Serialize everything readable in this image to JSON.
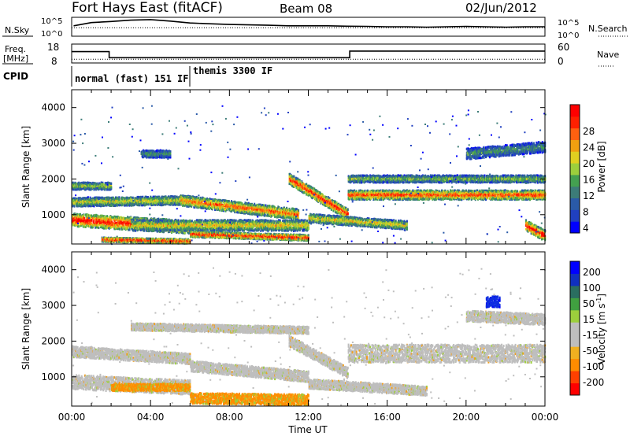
{
  "header": {
    "title": "Fort Hays East (fitACF)",
    "beam": "Beam 08",
    "date": "02/Jun/2012"
  },
  "colors": {
    "axis": "#000000",
    "scatter_gray": "#bebebe"
  },
  "chart_data": [
    {
      "type": "line",
      "name": "noise-panel",
      "left_label": "N.Sky",
      "right_label": "N.Search",
      "left_ticks": [
        "10^5",
        "10^0"
      ],
      "right_ticks": [
        "10^5",
        "10^0"
      ],
      "xlim_hours": [
        0,
        24
      ],
      "series": [
        {
          "name": "N.Sky",
          "style": "solid-dots",
          "x": [
            0.1,
            1,
            2,
            3,
            4,
            5,
            6,
            7,
            8,
            9,
            10,
            11,
            12,
            13,
            14,
            15,
            16,
            17,
            18,
            19,
            20,
            21,
            22,
            23,
            24
          ],
          "y": [
            0.55,
            0.72,
            0.78,
            0.85,
            0.88,
            0.8,
            0.7,
            0.66,
            0.62,
            0.6,
            0.58,
            0.55,
            0.55,
            0.55,
            0.53,
            0.52,
            0.5,
            0.5,
            0.48,
            0.5,
            0.52,
            0.5,
            0.48,
            0.5,
            0.5
          ]
        },
        {
          "name": "N.Search",
          "style": "dotted",
          "x": [
            0,
            24
          ],
          "y": [
            0.45,
            0.45
          ]
        }
      ]
    },
    {
      "type": "line",
      "name": "frequency-panel",
      "left_label": "Freq.",
      "left_unit": "[MHz]",
      "right_label": "Nave",
      "left_ticks": [
        "18",
        "8"
      ],
      "right_ticks": [
        "60",
        "0"
      ],
      "xlim_hours": [
        0,
        24
      ],
      "series": [
        {
          "name": "Freq",
          "style": "solid",
          "x": [
            0,
            1.9,
            1.9,
            14.1,
            14.1,
            24
          ],
          "y": [
            0.6,
            0.6,
            0.28,
            0.28,
            0.63,
            0.63
          ]
        },
        {
          "name": "Nave",
          "style": "dotted",
          "x": [
            0,
            24
          ],
          "y": [
            0.2,
            0.2
          ]
        }
      ]
    },
    {
      "type": "table",
      "name": "cpid-panel",
      "label": "CPID",
      "segments": [
        {
          "start_hour": 0,
          "end_hour": 6,
          "text": "normal (fast) 151 IF"
        },
        {
          "start_hour": 6,
          "end_hour": 24,
          "text": "themis 3300 IF"
        }
      ]
    },
    {
      "type": "heatmap",
      "name": "power-panel",
      "ylabel": "Slant Range [km]",
      "ylim": [
        180,
        4500
      ],
      "y_ticks": [
        1000,
        2000,
        3000,
        4000
      ],
      "xlim_hours": [
        0,
        24
      ],
      "colorbar": {
        "label": "Power [dB]",
        "ticks": [
          "28",
          "24",
          "20",
          "16",
          "12",
          "8",
          "4"
        ],
        "colors": [
          "#0000ff",
          "#2040c0",
          "#2a5aa8",
          "#3c7c78",
          "#44a050",
          "#9ccf3c",
          "#e0d020",
          "#f0a010",
          "#ff6010",
          "#ff2000",
          "#ff0000"
        ]
      },
      "bands": [
        {
          "x": [
            0,
            6
          ],
          "y_center": [
            850,
            650
          ],
          "half_width": 180,
          "intensity": 0.9
        },
        {
          "x": [
            0,
            6
          ],
          "y_center": [
            1350,
            1400
          ],
          "half_width": 120,
          "intensity": 0.55
        },
        {
          "x": [
            0,
            2
          ],
          "y_center": [
            1800,
            1800
          ],
          "half_width": 100,
          "intensity": 0.5
        },
        {
          "x": [
            5.5,
            11.5
          ],
          "y_center": [
            1400,
            1000
          ],
          "half_width": 150,
          "intensity": 0.75
        },
        {
          "x": [
            3,
            12
          ],
          "y_center": [
            700,
            700
          ],
          "half_width": 150,
          "intensity": 0.6
        },
        {
          "x": [
            1.5,
            6
          ],
          "y_center": [
            300,
            250
          ],
          "half_width": 60,
          "intensity": 0.9
        },
        {
          "x": [
            6,
            12
          ],
          "y_center": [
            450,
            350
          ],
          "half_width": 80,
          "intensity": 0.9
        },
        {
          "x": [
            11,
            14
          ],
          "y_center": [
            2000,
            1000
          ],
          "half_width": 150,
          "intensity": 0.85
        },
        {
          "x": [
            14,
            24
          ],
          "y_center": [
            1550,
            1550
          ],
          "half_width": 130,
          "intensity": 0.8
        },
        {
          "x": [
            12,
            17
          ],
          "y_center": [
            900,
            700
          ],
          "half_width": 120,
          "intensity": 0.6
        },
        {
          "x": [
            14,
            24
          ],
          "y_center": [
            2000,
            2000
          ],
          "half_width": 100,
          "intensity": 0.45
        },
        {
          "x": [
            20,
            24
          ],
          "y_center": [
            2700,
            2900
          ],
          "half_width": 150,
          "intensity": 0.35
        },
        {
          "x": [
            23,
            24
          ],
          "y_center": [
            700,
            400
          ],
          "half_width": 150,
          "intensity": 0.9
        },
        {
          "x": [
            3.5,
            5
          ],
          "y_center": [
            2700,
            2700
          ],
          "half_width": 100,
          "intensity": 0.35
        }
      ]
    },
    {
      "type": "heatmap",
      "name": "velocity-panel",
      "ylabel": "Slant Range [km]",
      "ylim": [
        180,
        4500
      ],
      "y_ticks": [
        1000,
        2000,
        3000,
        4000
      ],
      "xlim_hours": [
        0,
        24
      ],
      "x_ticks": [
        "00:00",
        "04:00",
        "08:00",
        "12:00",
        "16:00",
        "20:00",
        "00:00"
      ],
      "xlabel": "Time UT",
      "colorbar": {
        "label": "Velocity [m s",
        "label_superscript": "-1",
        "label_close": "]",
        "ticks": [
          "200",
          "100",
          "50",
          "15",
          "-15",
          "-50",
          "-100",
          "-200"
        ],
        "colors": [
          "#ff0000",
          "#ff4000",
          "#ff8c00",
          "#f0b020",
          "#bebebe",
          "#bebebe",
          "#9ccf3c",
          "#40a040",
          "#2a6e60",
          "#1030c0",
          "#0000ff"
        ]
      },
      "bands": [
        {
          "x": [
            0,
            6
          ],
          "y_center": [
            850,
            700
          ],
          "half_width": 200,
          "color": "gray"
        },
        {
          "x": [
            0,
            6
          ],
          "y_center": [
            1700,
            1500
          ],
          "half_width": 150,
          "color": "gray"
        },
        {
          "x": [
            3,
            12
          ],
          "y_center": [
            2400,
            2300
          ],
          "half_width": 100,
          "color": "gray"
        },
        {
          "x": [
            6,
            12
          ],
          "y_center": [
            1300,
            1000
          ],
          "half_width": 150,
          "color": "gray"
        },
        {
          "x": [
            11,
            14
          ],
          "y_center": [
            2000,
            1100
          ],
          "half_width": 150,
          "color": "gray"
        },
        {
          "x": [
            14,
            24
          ],
          "y_center": [
            1650,
            1650
          ],
          "half_width": 250,
          "color": "gray"
        },
        {
          "x": [
            12,
            18
          ],
          "y_center": [
            800,
            600
          ],
          "half_width": 130,
          "color": "gray"
        },
        {
          "x": [
            20,
            24
          ],
          "y_center": [
            2700,
            2600
          ],
          "half_width": 150,
          "color": "gray"
        },
        {
          "x": [
            6,
            12
          ],
          "y_center": [
            400,
            350
          ],
          "half_width": 150,
          "color": "orange"
        },
        {
          "x": [
            2,
            6
          ],
          "y_center": [
            700,
            700
          ],
          "half_width": 100,
          "color": "orange"
        },
        {
          "x": [
            21,
            21.7
          ],
          "y_center": [
            3100,
            3100
          ],
          "half_width": 150,
          "color": "blue"
        }
      ]
    }
  ]
}
